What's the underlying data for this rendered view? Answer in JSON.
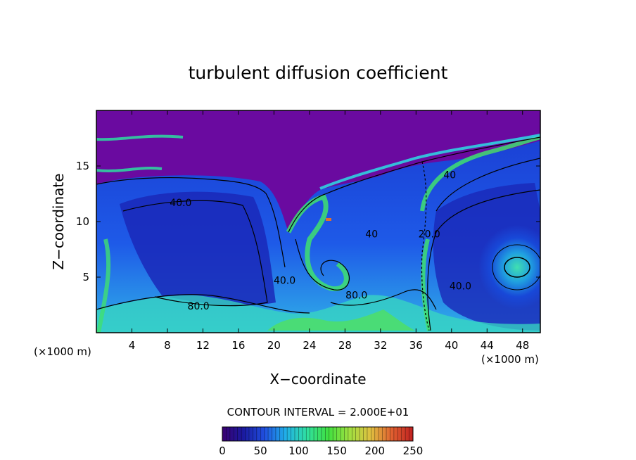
{
  "chart_data": {
    "type": "heatmap",
    "title": "turbulent diffusion coefficient",
    "xlabel": "X−coordinate",
    "ylabel": "Z−coordinate",
    "x_units": "(×1000 m)",
    "x_units_right": "(×1000 m)",
    "x_ticks": [
      4,
      8,
      12,
      16,
      20,
      24,
      28,
      32,
      36,
      40,
      44,
      48
    ],
    "y_ticks": [
      5,
      10,
      15
    ],
    "xlim": [
      0,
      50
    ],
    "ylim": [
      0,
      20
    ],
    "contour_interval_text": "CONTOUR INTERVAL = 2.000E+01",
    "colorbar": {
      "range": [
        0,
        250
      ],
      "ticks": [
        0,
        50,
        100,
        150,
        200,
        250
      ],
      "colors": [
        "#3a0070",
        "#1a1aa0",
        "#2050e0",
        "#20b0e8",
        "#30e0a0",
        "#40e040",
        "#a0e040",
        "#e0c040",
        "#e06030",
        "#c02020"
      ]
    },
    "contour_labels": [
      {
        "text": "40.0",
        "x": 9.5,
        "z": 11.7
      },
      {
        "text": "40",
        "x": 31.0,
        "z": 8.9
      },
      {
        "text": "40",
        "x": 39.8,
        "z": 14.2
      },
      {
        "text": "80.0",
        "x": 11.5,
        "z": 2.4
      },
      {
        "text": "80.0",
        "x": 29.3,
        "z": 3.4
      },
      {
        "text": "40.0",
        "x": 41.0,
        "z": 4.2
      },
      {
        "text": "20.0",
        "x": 37.5,
        "z": 8.9
      },
      {
        "text": "40.0",
        "x": 21.2,
        "z": 4.7
      }
    ]
  }
}
